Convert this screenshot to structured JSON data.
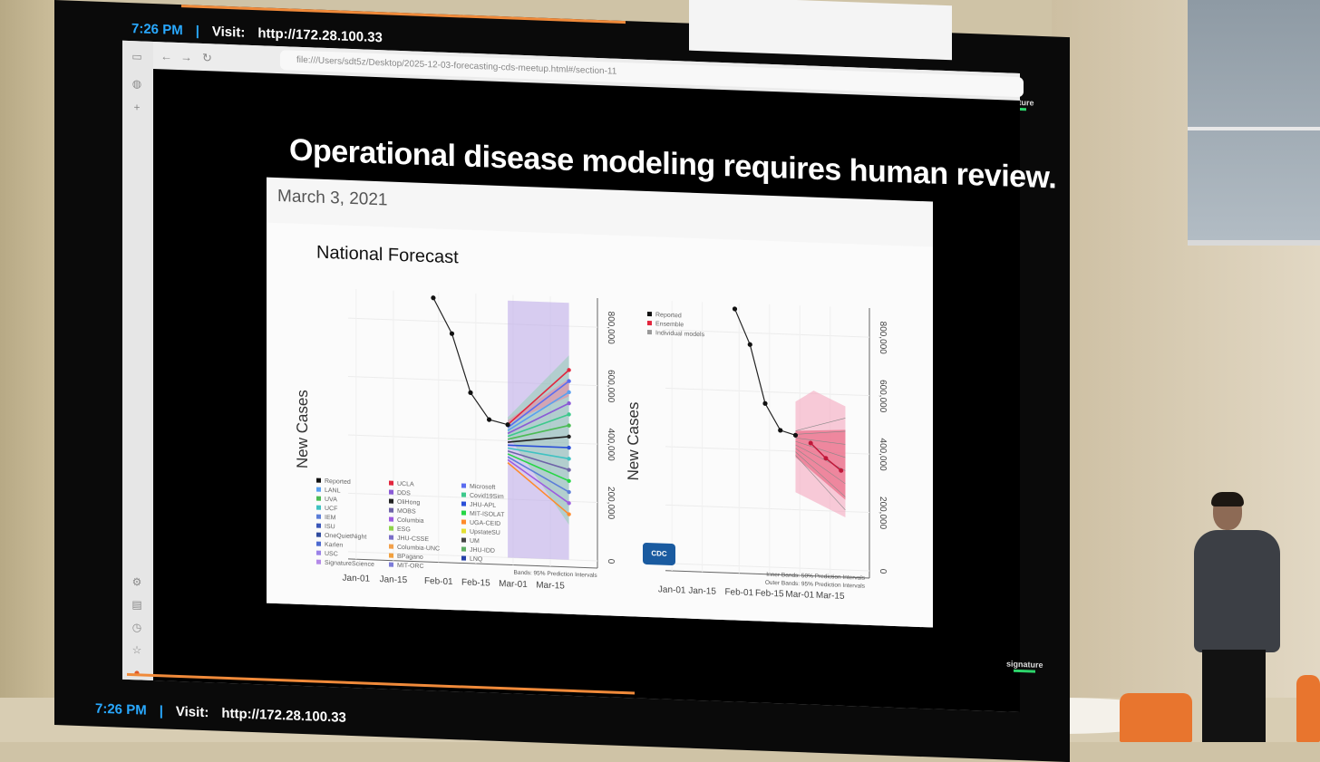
{
  "status_bar": {
    "time": "7:26 PM",
    "separator": "|",
    "visit_label": "Visit:",
    "visit_url": "http://172.28.100.33"
  },
  "browser": {
    "url": "file:///Users/sdt5z/Desktop/2025-12-03-forecasting-cds-meetup.html#/section-11"
  },
  "slide": {
    "title": "Operational disease modeling requires human review.",
    "figure_date": "March 3, 2021",
    "figure_title": "National Forecast",
    "cdc_badge": "CDC"
  },
  "chart_data": [
    {
      "type": "line",
      "title": "National Forecast",
      "ylabel": "New Cases",
      "x_ticks": [
        "Jan-01",
        "Jan-15",
        "Feb-01",
        "Feb-15",
        "Mar-01",
        "Mar-15"
      ],
      "y_ticks": [
        "0",
        "200,000",
        "400,000",
        "600,000",
        "800,000"
      ],
      "ylim": [
        0,
        900000
      ],
      "series": [
        {
          "name": "Reported",
          "x": [
            "Jan-30",
            "Feb-06",
            "Feb-13",
            "Feb-20",
            "Feb-27"
          ],
          "y": [
            880000,
            760000,
            560000,
            470000,
            455000
          ]
        }
      ],
      "legend": [
        "Reported",
        "UCLA",
        "Microsoft",
        "LANL",
        "DDS",
        "Covid19Sim",
        "UVA",
        "OliHong",
        "JHU-APL",
        "UCF",
        "MOBS",
        "MIT-ISOLAT",
        "IEM",
        "Columbia",
        "UGA-CEID",
        "ISU",
        "ESG",
        "UpstateSU",
        "OneQuietNight",
        "JHU-CSSE",
        "UM",
        "Karlen",
        "Columbia-UNC",
        "JHU-IDD",
        "USC",
        "BPagano",
        "LNQ",
        "SignatureScience",
        "MIT-ORC"
      ],
      "colors": [
        "#111111",
        "#e2263d",
        "#5a6cf0",
        "#5aa0f0",
        "#8a5ad6",
        "#3cc98c",
        "#4bbc55",
        "#222222",
        "#2a4fd8",
        "#3fc2c2",
        "#6e63a8",
        "#26d645",
        "#5b7dd8",
        "#9c5be0",
        "#ff8a2a",
        "#3a56b8",
        "#8fd44a",
        "#e3df32",
        "#2f4b9e",
        "#7a6ec8",
        "#444444",
        "#4d6ad0",
        "#f2a04a",
        "#5dae63",
        "#9b82e8",
        "#f2a03d",
        "#2440a8",
        "#b48ae8",
        "#7c7cd8"
      ],
      "annotation": "Bands: 95% Prediction Intervals"
    },
    {
      "type": "line",
      "ylabel": "New Cases",
      "x_ticks": [
        "Jan-01",
        "Jan-15",
        "Feb-01",
        "Feb-15",
        "Mar-01",
        "Mar-15"
      ],
      "y_ticks": [
        "0",
        "200,000",
        "400,000",
        "600,000",
        "800,000"
      ],
      "ylim": [
        0,
        900000
      ],
      "series": [
        {
          "name": "Reported",
          "x": [
            "Jan-30",
            "Feb-06",
            "Feb-13",
            "Feb-20",
            "Feb-27"
          ],
          "y": [
            880000,
            760000,
            560000,
            470000,
            455000
          ]
        },
        {
          "name": "Ensemble",
          "x": [
            "Mar-06",
            "Mar-13",
            "Mar-20"
          ],
          "y": [
            430000,
            380000,
            340000
          ]
        }
      ],
      "legend": [
        "Reported",
        "Ensemble",
        "Individual models"
      ],
      "colors": [
        "#111111",
        "#e2263d",
        "#999999"
      ],
      "annotations": [
        "Inner Bands: 50% Prediction Intervals",
        "Outer Bands: 95% Prediction Intervals"
      ]
    }
  ],
  "brand": {
    "name": "signature"
  }
}
